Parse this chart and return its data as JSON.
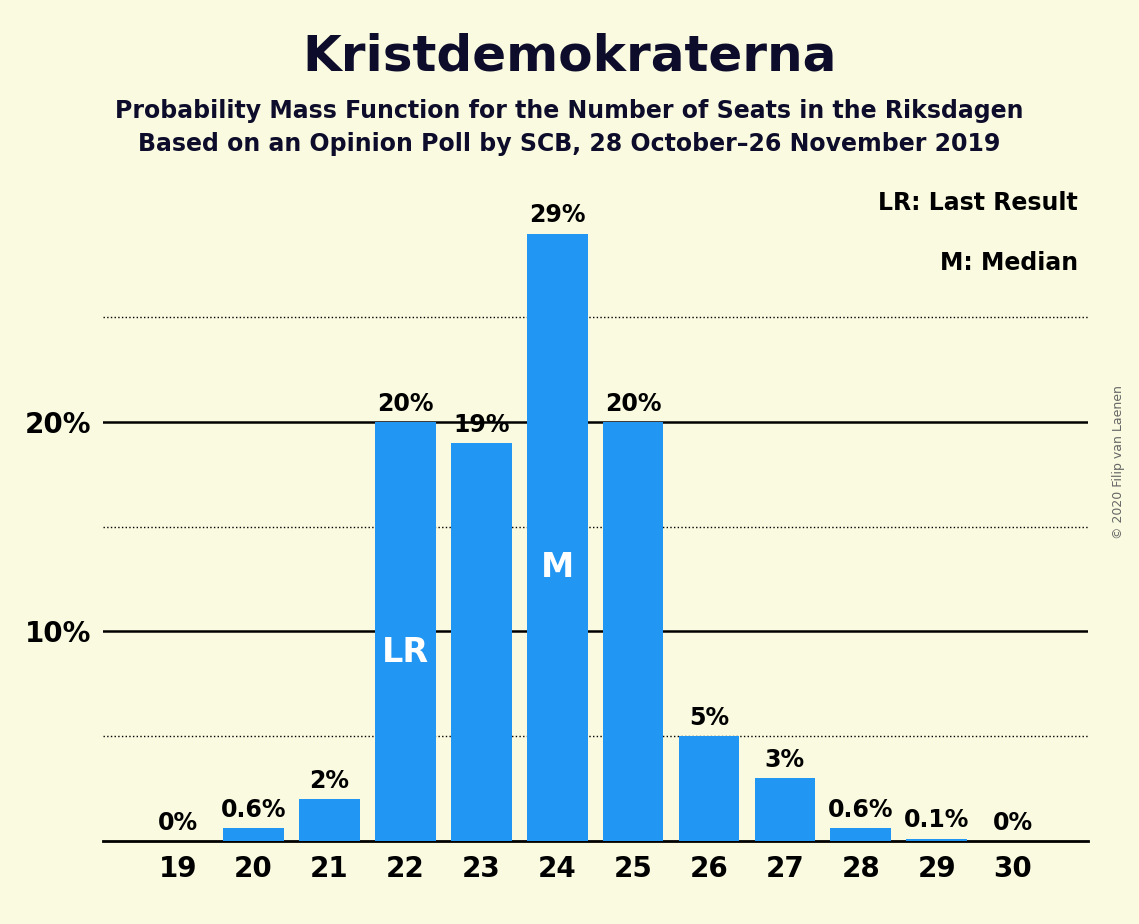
{
  "title": "Kristdemokraterna",
  "subtitle1": "Probability Mass Function for the Number of Seats in the Riksdagen",
  "subtitle2": "Based on an Opinion Poll by SCB, 28 October–26 November 2019",
  "copyright": "© 2020 Filip van Laenen",
  "categories": [
    19,
    20,
    21,
    22,
    23,
    24,
    25,
    26,
    27,
    28,
    29,
    30
  ],
  "values": [
    0.0,
    0.6,
    2.0,
    20.0,
    19.0,
    29.0,
    20.0,
    5.0,
    3.0,
    0.6,
    0.1,
    0.0
  ],
  "labels": [
    "0%",
    "0.6%",
    "2%",
    "20%",
    "19%",
    "29%",
    "20%",
    "5%",
    "3%",
    "0.6%",
    "0.1%",
    "0%"
  ],
  "bar_color": "#2196F3",
  "background_color": "#FAFAE0",
  "title_fontsize": 36,
  "subtitle_fontsize": 17,
  "label_fontsize": 17,
  "axis_label_fontsize": 20,
  "ylim": [
    0,
    32
  ],
  "lr_bar": 22,
  "median_bar": 24,
  "legend_text1": "LR: Last Result",
  "legend_text2": "M: Median",
  "inner_label_lr": "LR",
  "inner_label_m": "M",
  "inner_label_color": "white",
  "inner_label_fontsize": 24,
  "solid_grid_lines": [
    10,
    20
  ],
  "dotted_grid_lines": [
    5,
    15,
    25
  ],
  "copyright_fontsize": 9,
  "legend_fontsize": 17
}
